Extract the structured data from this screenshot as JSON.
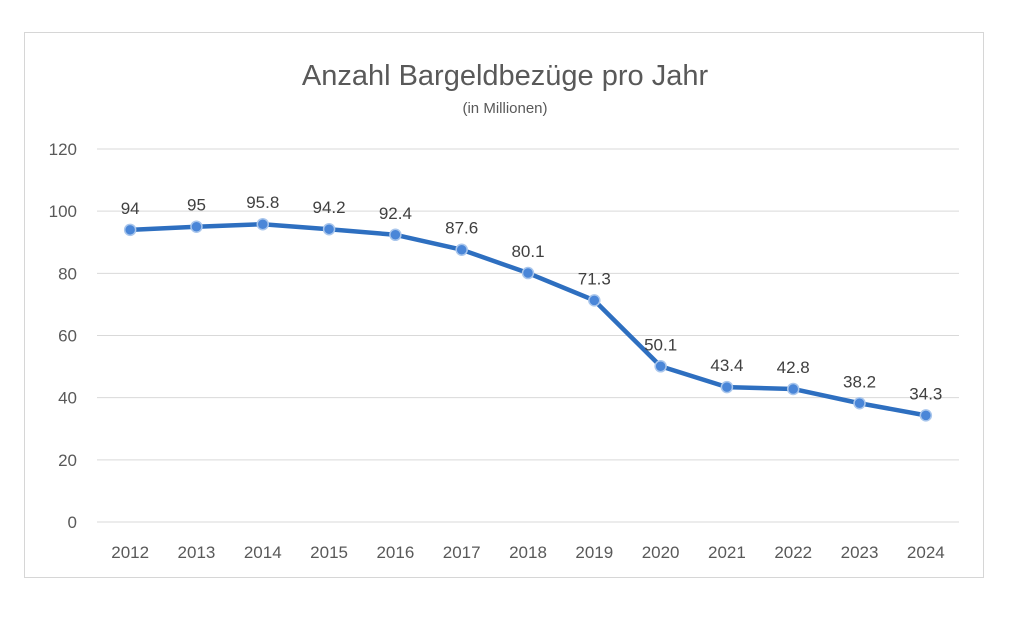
{
  "chart_data": {
    "type": "line",
    "title": "Anzahl Bargeldbezüge pro Jahr",
    "subtitle": "(in Millionen)",
    "xlabel": "",
    "ylabel": "",
    "categories": [
      "2012",
      "2013",
      "2014",
      "2015",
      "2016",
      "2017",
      "2018",
      "2019",
      "2020",
      "2021",
      "2022",
      "2023",
      "2024"
    ],
    "series": [
      {
        "values": [
          94,
          95,
          95.8,
          94.2,
          92.4,
          87.6,
          80.1,
          71.3,
          50.1,
          43.4,
          42.8,
          38.2,
          34.3
        ],
        "labels": [
          "94",
          "95",
          "95.8",
          "94.2",
          "92.4",
          "87.6",
          "80.1",
          "71.3",
          "50.1",
          "43.4",
          "42.8",
          "38.2",
          "34.3"
        ]
      }
    ],
    "ylim": [
      0,
      120
    ],
    "yticks": [
      "0",
      "20",
      "40",
      "60",
      "80",
      "100",
      "120"
    ],
    "grid": true,
    "legend": "none",
    "colors": {
      "line": "#2e6fc0",
      "marker_fill": "#4a86d8",
      "marker_stroke": "#a9c6ec",
      "gridline": "#d9d9d9",
      "text": "#595959"
    }
  }
}
